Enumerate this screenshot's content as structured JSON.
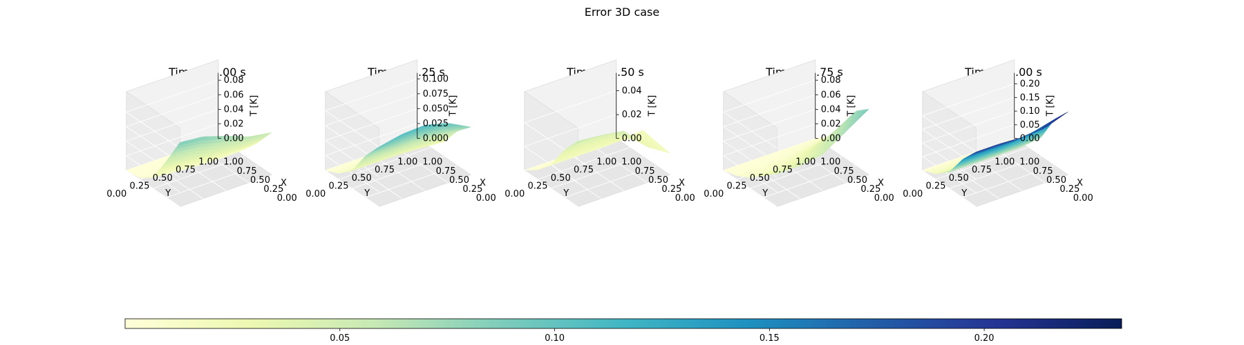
{
  "figure": {
    "suptitle": "Error 3D case"
  },
  "colormap": {
    "name": "YlGnBu",
    "stops": [
      "#ffffd9",
      "#edf8b1",
      "#c7e9b4",
      "#7fcdbb",
      "#41b6c4",
      "#1d91c0",
      "#225ea8",
      "#253494",
      "#081d58"
    ]
  },
  "colorbar": {
    "range": [
      0.0,
      0.232
    ],
    "tick_values": [
      0.05,
      0.1,
      0.15,
      0.2
    ],
    "tick_labels": [
      "0.05",
      "0.10",
      "0.15",
      "0.20"
    ]
  },
  "chart_data": [
    {
      "type": "surface3d",
      "title": "Time = 0.00 s",
      "xlabel": "X",
      "ylabel": "Y",
      "zlabel": "T [K]",
      "x_ticks": [
        "0.00",
        "0.25",
        "0.50",
        "0.75",
        "1.00"
      ],
      "y_ticks": [
        "0.00",
        "0.25",
        "0.50",
        "0.75",
        "1.00"
      ],
      "z_tick_values": [
        0.0,
        0.02,
        0.04,
        0.06,
        0.08
      ],
      "z_tick_labels": [
        "0.00",
        "0.02",
        "0.04",
        "0.06",
        "0.08"
      ],
      "zlim": [
        0.0,
        0.09
      ],
      "x": [
        0.0,
        0.25,
        0.5,
        0.75,
        1.0
      ],
      "y": [
        0.0,
        0.25,
        0.5,
        0.75,
        1.0
      ],
      "z_rows_by_x": [
        [
          0.0,
          0.0,
          0.0,
          0.0,
          0.0
        ],
        [
          0.002,
          0.003,
          0.003,
          0.002,
          0.002
        ],
        [
          0.015,
          0.012,
          0.01,
          0.009,
          0.01
        ],
        [
          0.05,
          0.045,
          0.038,
          0.033,
          0.032
        ],
        [
          0.088,
          0.085,
          0.075,
          0.063,
          0.058
        ]
      ]
    },
    {
      "type": "surface3d",
      "title": "Time = 0.25 s",
      "xlabel": "X",
      "ylabel": "Y",
      "zlabel": "T [K]",
      "x_ticks": [
        "0.00",
        "0.25",
        "0.50",
        "0.75",
        "1.00"
      ],
      "y_ticks": [
        "0.00",
        "0.25",
        "0.50",
        "0.75",
        "1.00"
      ],
      "z_tick_values": [
        0.0,
        0.025,
        0.05,
        0.075,
        0.1
      ],
      "z_tick_labels": [
        "0.000",
        "0.025",
        "0.050",
        "0.075",
        "0.100"
      ],
      "zlim": [
        0.0,
        0.11
      ],
      "x": [
        0.0,
        0.25,
        0.5,
        0.75,
        1.0
      ],
      "y": [
        0.0,
        0.25,
        0.5,
        0.75,
        1.0
      ],
      "z_rows_by_x": [
        [
          0.0,
          0.0,
          0.0,
          0.0,
          0.0
        ],
        [
          0.01,
          0.01,
          0.01,
          0.01,
          0.008
        ],
        [
          0.03,
          0.03,
          0.03,
          0.028,
          0.025
        ],
        [
          0.07,
          0.07,
          0.07,
          0.066,
          0.058
        ],
        [
          0.1,
          0.108,
          0.11,
          0.1,
          0.08
        ]
      ]
    },
    {
      "type": "surface3d",
      "title": "Time = 0.50 s",
      "xlabel": "X",
      "ylabel": "Y",
      "zlabel": "T [K]",
      "x_ticks": [
        "0.00",
        "0.25",
        "0.50",
        "0.75",
        "1.00"
      ],
      "y_ticks": [
        "0.00",
        "0.25",
        "0.50",
        "0.75",
        "1.00"
      ],
      "z_tick_values": [
        0.0,
        0.02,
        0.04
      ],
      "z_tick_labels": [
        "0.00",
        "0.02",
        "0.04"
      ],
      "zlim": [
        0.0,
        0.055
      ],
      "x": [
        0.0,
        0.25,
        0.5,
        0.75,
        1.0
      ],
      "y": [
        0.0,
        0.25,
        0.5,
        0.75,
        1.0
      ],
      "z_rows_by_x": [
        [
          0.0,
          0.0,
          0.0,
          0.0,
          0.0
        ],
        [
          0.008,
          0.008,
          0.008,
          0.008,
          0.01
        ],
        [
          0.02,
          0.02,
          0.02,
          0.02,
          0.022
        ],
        [
          0.04,
          0.042,
          0.04,
          0.03,
          0.02
        ],
        [
          0.055,
          0.053,
          0.05,
          0.03,
          0.018
        ]
      ]
    },
    {
      "type": "surface3d",
      "title": "Time = 0.75 s",
      "xlabel": "X",
      "ylabel": "Y",
      "zlabel": "T [K]",
      "x_ticks": [
        "0.00",
        "0.25",
        "0.50",
        "0.75",
        "1.00"
      ],
      "y_ticks": [
        "0.00",
        "0.25",
        "0.50",
        "0.75",
        "1.00"
      ],
      "z_tick_values": [
        0.0,
        0.02,
        0.04,
        0.06,
        0.08
      ],
      "z_tick_labels": [
        "0.00",
        "0.02",
        "0.04",
        "0.06",
        "0.08"
      ],
      "zlim": [
        0.0,
        0.09
      ],
      "x": [
        0.0,
        0.25,
        0.5,
        0.75,
        1.0
      ],
      "y": [
        0.0,
        0.25,
        0.5,
        0.75,
        1.0
      ],
      "z_rows_by_x": [
        [
          0.0,
          0.0,
          0.0,
          0.0,
          0.0
        ],
        [
          0.005,
          0.005,
          0.006,
          0.01,
          0.015
        ],
        [
          0.015,
          0.015,
          0.02,
          0.03,
          0.04
        ],
        [
          0.03,
          0.03,
          0.035,
          0.055,
          0.075
        ],
        [
          0.045,
          0.045,
          0.05,
          0.07,
          0.09
        ]
      ]
    },
    {
      "type": "surface3d",
      "title": "Time = 1.00 s",
      "xlabel": "X",
      "ylabel": "Y",
      "zlabel": "T [K]",
      "x_ticks": [
        "0.00",
        "0.25",
        "0.50",
        "0.75",
        "1.00"
      ],
      "y_ticks": [
        "0.00",
        "0.25",
        "0.50",
        "0.75",
        "1.00"
      ],
      "z_tick_values": [
        0.0,
        0.05,
        0.1,
        0.15,
        0.2
      ],
      "z_tick_labels": [
        "0.00",
        "0.05",
        "0.10",
        "0.15",
        "0.20"
      ],
      "zlim": [
        0.0,
        0.24
      ],
      "x": [
        0.0,
        0.25,
        0.5,
        0.75,
        1.0
      ],
      "y": [
        0.0,
        0.25,
        0.5,
        0.75,
        1.0
      ],
      "z_rows_by_x": [
        [
          0.0,
          0.0,
          0.0,
          0.0,
          0.0
        ],
        [
          0.02,
          0.02,
          0.02,
          0.02,
          0.025
        ],
        [
          0.06,
          0.06,
          0.06,
          0.06,
          0.07
        ],
        [
          0.14,
          0.14,
          0.14,
          0.15,
          0.17
        ],
        [
          0.2,
          0.2,
          0.195,
          0.2,
          0.23
        ]
      ]
    }
  ]
}
